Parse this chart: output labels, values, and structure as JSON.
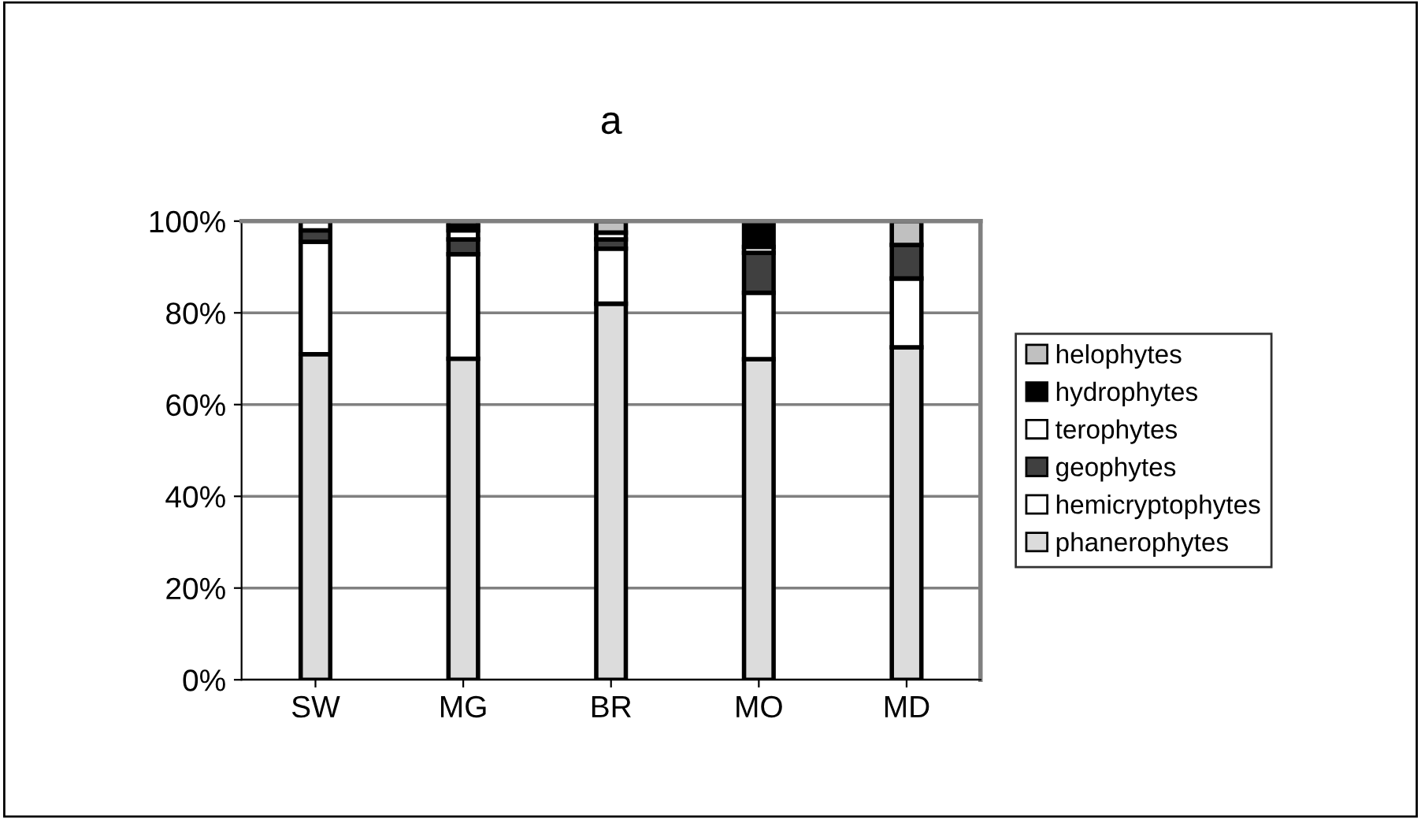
{
  "chart_data": {
    "type": "bar",
    "title": "a",
    "stacked": true,
    "categories": [
      "SW",
      "MG",
      "BR",
      "MO",
      "MD"
    ],
    "series": [
      {
        "name": "phanerophytes",
        "color": "#dcdcdc",
        "values": [
          71,
          70,
          82,
          69.9,
          72.5
        ]
      },
      {
        "name": "hemicryptophytes",
        "color": "#ffffff",
        "values": [
          24.5,
          22.8,
          12,
          14.5,
          15
        ]
      },
      {
        "name": "geophytes",
        "color": "#404040",
        "values": [
          2.5,
          3.2,
          2,
          8.7,
          7.3
        ]
      },
      {
        "name": "terophytes",
        "color": "#ffffff",
        "values": [
          2,
          2,
          1.5,
          1.3,
          0
        ]
      },
      {
        "name": "hydrophytes",
        "color": "#000000",
        "values": [
          0,
          1,
          0,
          5.6,
          0
        ]
      },
      {
        "name": "helophytes",
        "color": "#c0c0c0",
        "values": [
          0,
          1,
          2.5,
          0,
          5.2
        ]
      }
    ],
    "ylim": [
      0,
      100
    ],
    "yticks": [
      {
        "value": 0,
        "label": "0%"
      },
      {
        "value": 20,
        "label": "20%"
      },
      {
        "value": 40,
        "label": "40%"
      },
      {
        "value": 60,
        "label": "60%"
      },
      {
        "value": 80,
        "label": "80%"
      },
      {
        "value": 100,
        "label": "100%"
      }
    ],
    "grid": "y",
    "legend": "right"
  }
}
